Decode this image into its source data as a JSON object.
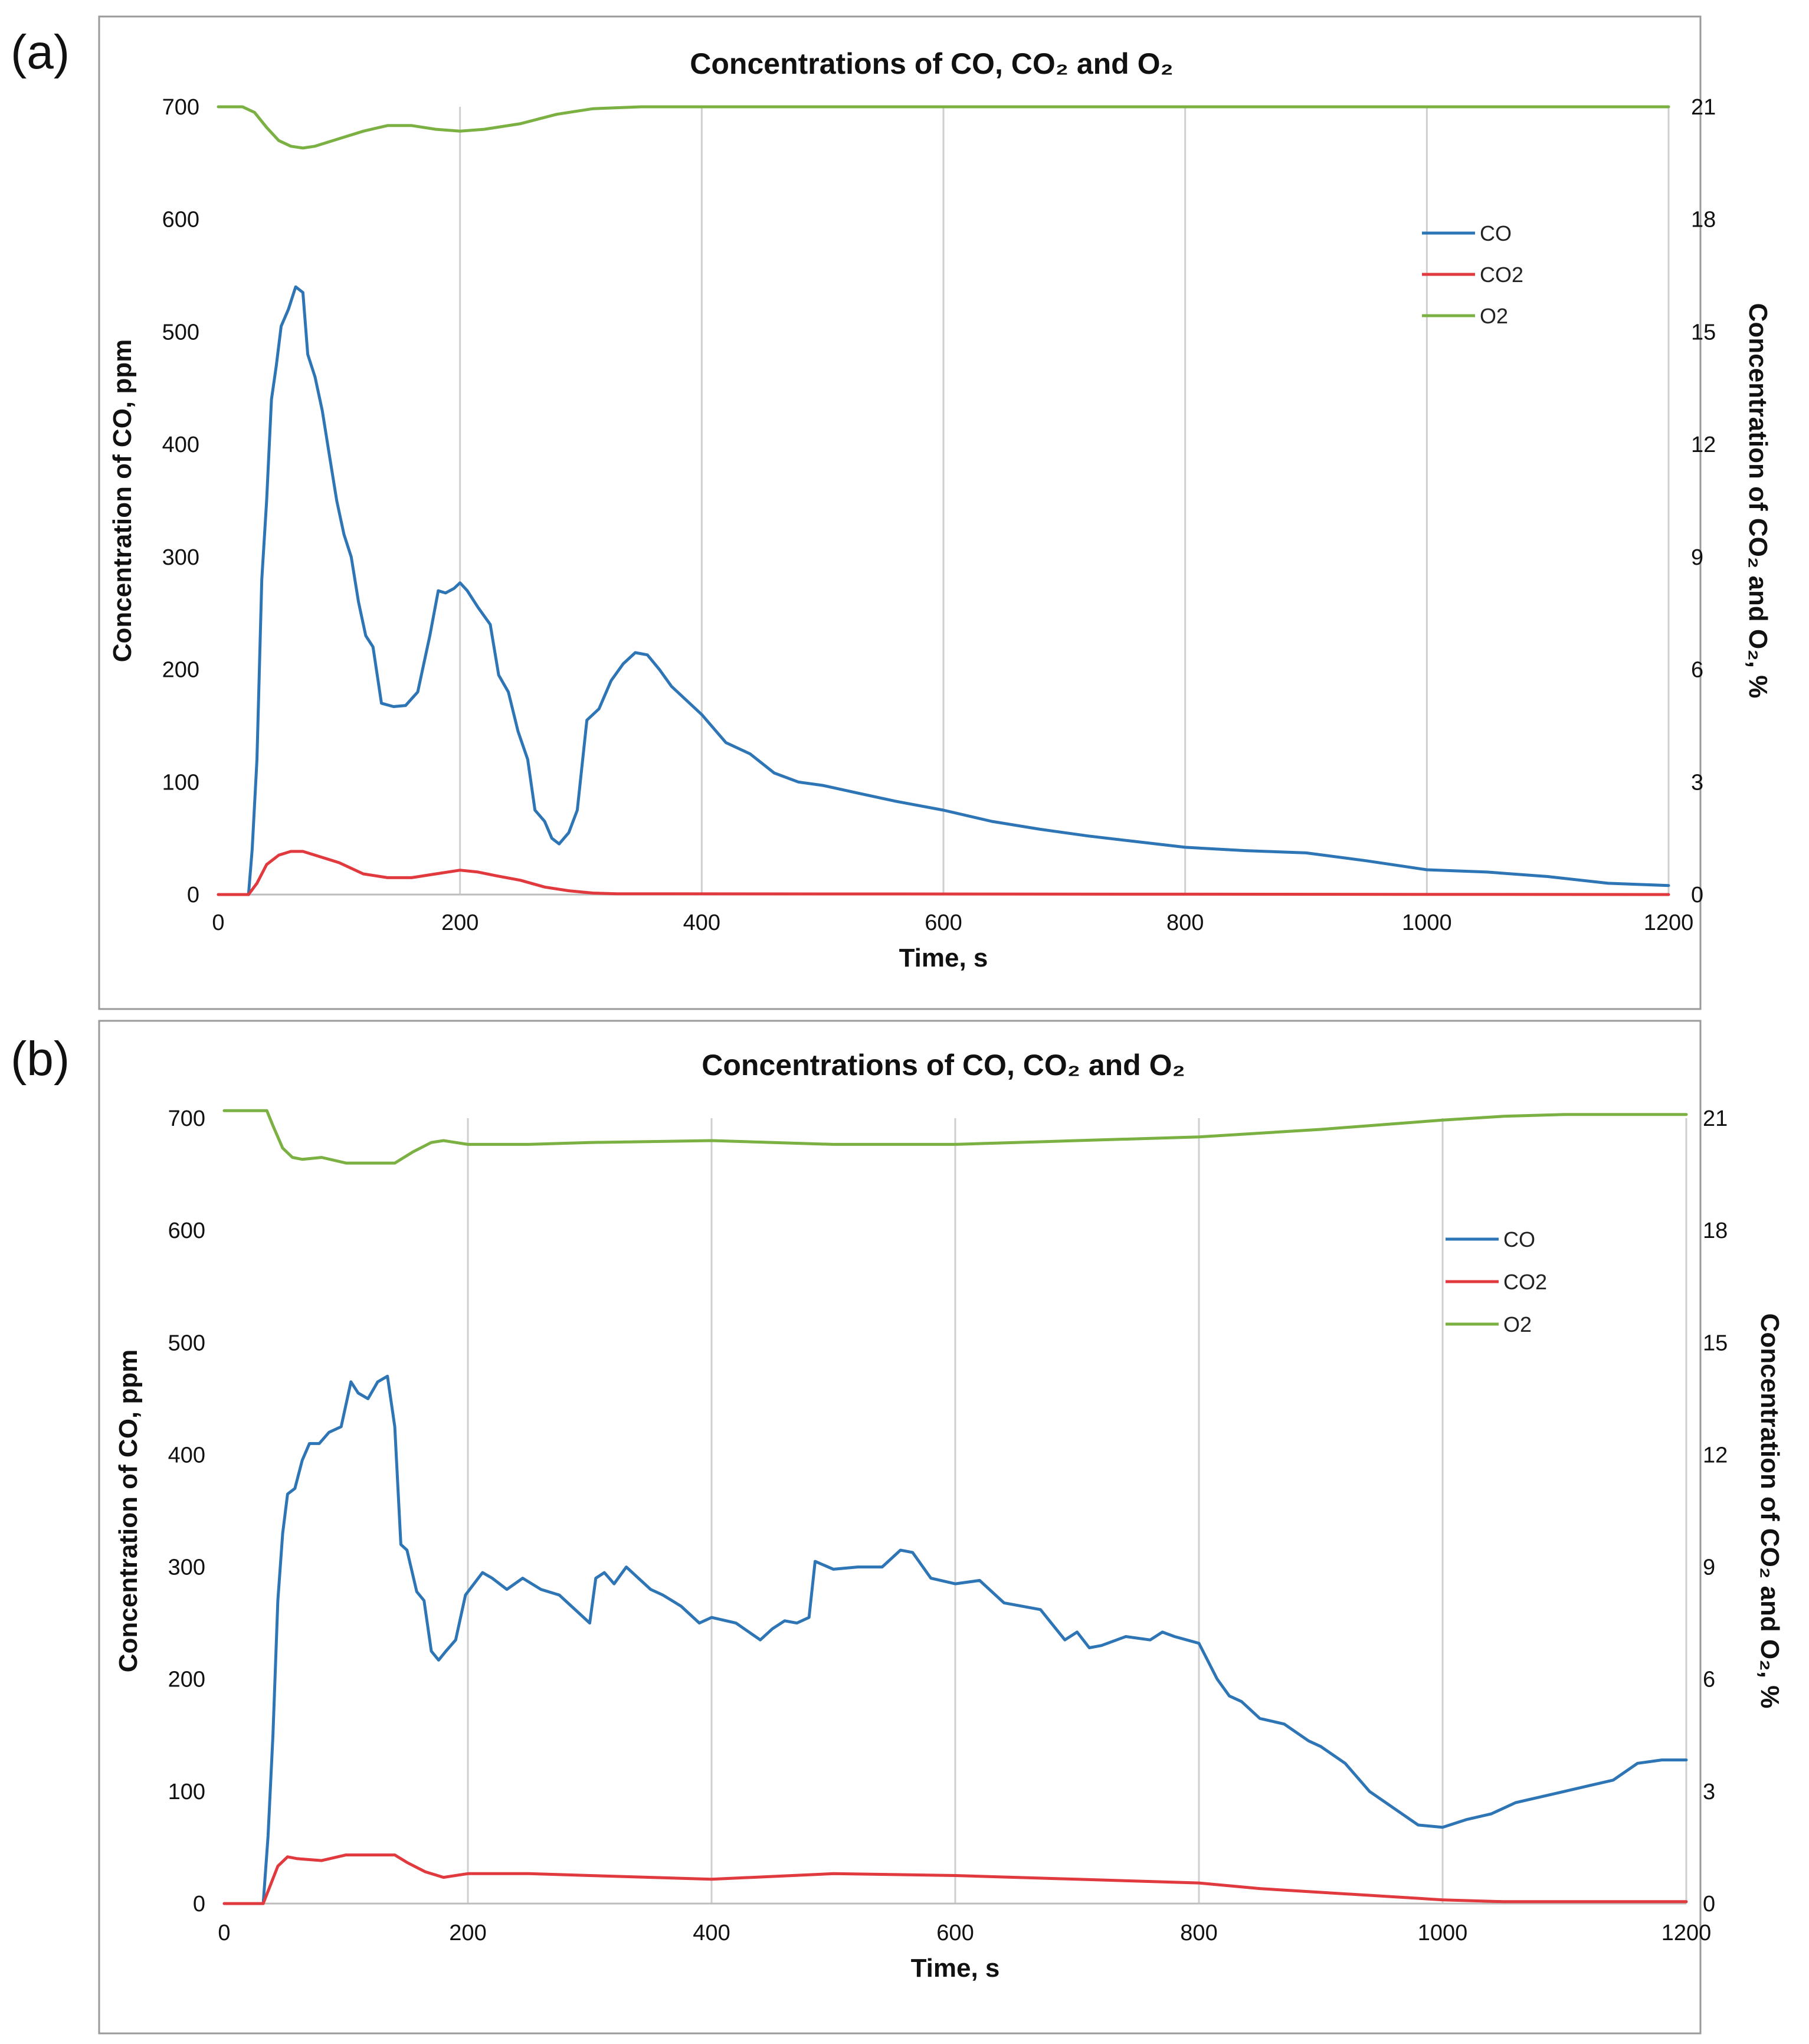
{
  "panels": [
    {
      "label": "(a)"
    },
    {
      "label": "(b)"
    }
  ],
  "legend": {
    "items": [
      {
        "name": "CO",
        "color": "#2E75B6"
      },
      {
        "name": "CO2",
        "color": "#E0393E"
      },
      {
        "name": "O2",
        "color": "#7BB043"
      }
    ]
  },
  "chart_data": [
    {
      "type": "line",
      "panel": "(a)",
      "title": "Concentrations of CO,   CO₂ and O₂",
      "xlabel": "Time, s",
      "ylabel": "Concentration of CO, ppm",
      "y2label": "Concentration of CO₂ and O₂, %",
      "xlim": [
        0,
        1200
      ],
      "ylim": [
        0,
        700
      ],
      "y2lim": [
        0,
        21
      ],
      "xticks": [
        0,
        200,
        400,
        600,
        800,
        1000,
        1200
      ],
      "yticks": [
        0,
        100,
        200,
        300,
        400,
        500,
        600,
        700
      ],
      "y2ticks": [
        0,
        3,
        6,
        9,
        12,
        15,
        18,
        21
      ],
      "grid": "vertical",
      "legend_position": "right",
      "series": [
        {
          "name": "CO",
          "axis": "left",
          "color": "#2E75B6",
          "x": [
            0,
            25,
            28,
            32,
            36,
            40,
            44,
            48,
            52,
            58,
            64,
            70,
            74,
            80,
            86,
            92,
            98,
            104,
            110,
            116,
            122,
            128,
            135,
            145,
            155,
            165,
            175,
            182,
            188,
            195,
            200,
            206,
            215,
            225,
            232,
            240,
            248,
            256,
            262,
            270,
            276,
            282,
            290,
            297,
            305,
            315,
            325,
            335,
            345,
            355,
            365,
            375,
            385,
            400,
            420,
            440,
            460,
            480,
            500,
            530,
            560,
            600,
            640,
            680,
            720,
            760,
            800,
            850,
            900,
            950,
            1000,
            1050,
            1100,
            1150,
            1200
          ],
          "y": [
            0,
            0,
            40,
            120,
            280,
            350,
            440,
            470,
            505,
            520,
            540,
            535,
            480,
            460,
            430,
            390,
            350,
            320,
            300,
            260,
            230,
            220,
            170,
            167,
            168,
            180,
            230,
            270,
            268,
            272,
            277,
            270,
            255,
            240,
            195,
            180,
            145,
            120,
            75,
            65,
            50,
            45,
            55,
            75,
            155,
            165,
            190,
            205,
            215,
            213,
            200,
            185,
            175,
            160,
            135,
            125,
            108,
            100,
            97,
            90,
            83,
            75,
            65,
            58,
            52,
            47,
            42,
            39,
            37,
            30,
            22,
            20,
            16,
            10,
            8
          ]
        },
        {
          "name": "CO2",
          "axis": "right",
          "color": "#E0393E",
          "x": [
            0,
            25,
            32,
            40,
            50,
            60,
            70,
            80,
            90,
            100,
            120,
            140,
            160,
            180,
            200,
            215,
            230,
            250,
            270,
            290,
            310,
            330,
            1200
          ],
          "y": [
            0,
            0,
            0.3,
            0.8,
            1.05,
            1.15,
            1.15,
            1.05,
            0.95,
            0.85,
            0.55,
            0.45,
            0.45,
            0.55,
            0.65,
            0.6,
            0.5,
            0.38,
            0.2,
            0.1,
            0.04,
            0.02,
            0
          ]
        },
        {
          "name": "O2",
          "axis": "right",
          "color": "#7BB043",
          "x": [
            0,
            20,
            30,
            40,
            50,
            60,
            70,
            80,
            90,
            100,
            120,
            140,
            160,
            180,
            200,
            220,
            250,
            280,
            310,
            350,
            400,
            500,
            1200
          ],
          "y": [
            21,
            21,
            20.85,
            20.45,
            20.1,
            19.95,
            19.9,
            19.95,
            20.05,
            20.15,
            20.35,
            20.5,
            20.5,
            20.4,
            20.35,
            20.4,
            20.55,
            20.8,
            20.95,
            21.0,
            21.0,
            21.0,
            21.0
          ]
        }
      ]
    },
    {
      "type": "line",
      "panel": "(b)",
      "title": "Concentrations of CO,   CO₂ and O₂",
      "xlabel": "Time, s",
      "ylabel": "Concentration of CO, ppm",
      "y2label": "Concentration of CO₂ and O₂, %",
      "xlim": [
        0,
        1200
      ],
      "ylim": [
        0,
        700
      ],
      "y2lim": [
        0,
        21
      ],
      "xticks": [
        0,
        200,
        400,
        600,
        800,
        1000,
        1200
      ],
      "yticks": [
        0,
        100,
        200,
        300,
        400,
        500,
        600,
        700
      ],
      "y2ticks": [
        0,
        3,
        6,
        9,
        12,
        15,
        18,
        21
      ],
      "grid": "vertical",
      "legend_position": "right",
      "series": [
        {
          "name": "CO",
          "axis": "left",
          "color": "#2E75B6",
          "x": [
            0,
            32,
            36,
            40,
            44,
            48,
            52,
            58,
            64,
            70,
            78,
            86,
            96,
            104,
            110,
            118,
            126,
            134,
            140,
            145,
            150,
            158,
            164,
            170,
            176,
            182,
            190,
            198,
            205,
            212,
            220,
            232,
            245,
            260,
            275,
            290,
            300,
            305,
            312,
            320,
            330,
            340,
            350,
            360,
            375,
            390,
            400,
            420,
            440,
            450,
            460,
            470,
            480,
            485,
            500,
            520,
            540,
            555,
            565,
            580,
            600,
            620,
            640,
            670,
            690,
            700,
            710,
            720,
            740,
            760,
            770,
            780,
            790,
            800,
            815,
            825,
            835,
            850,
            870,
            890,
            900,
            920,
            940,
            960,
            980,
            1000,
            1020,
            1040,
            1060,
            1080,
            1100,
            1120,
            1140,
            1160,
            1180,
            1200
          ],
          "y": [
            0,
            0,
            60,
            150,
            270,
            330,
            365,
            370,
            395,
            410,
            410,
            420,
            425,
            465,
            455,
            450,
            465,
            470,
            425,
            320,
            315,
            278,
            270,
            225,
            217,
            225,
            235,
            275,
            285,
            295,
            290,
            280,
            290,
            280,
            275,
            260,
            250,
            290,
            295,
            285,
            300,
            290,
            280,
            275,
            265,
            250,
            255,
            250,
            235,
            245,
            252,
            250,
            255,
            305,
            298,
            300,
            300,
            315,
            313,
            290,
            285,
            288,
            268,
            262,
            235,
            242,
            228,
            230,
            238,
            235,
            242,
            238,
            235,
            232,
            200,
            185,
            180,
            165,
            160,
            145,
            140,
            125,
            100,
            85,
            70,
            68,
            75,
            80,
            90,
            95,
            100,
            105,
            110,
            125,
            128,
            128
          ]
        },
        {
          "name": "CO2",
          "axis": "right",
          "color": "#E0393E",
          "x": [
            0,
            32,
            38,
            44,
            52,
            60,
            80,
            100,
            120,
            140,
            150,
            165,
            180,
            200,
            250,
            300,
            400,
            500,
            600,
            700,
            800,
            850,
            900,
            1000,
            1050,
            1200
          ],
          "y": [
            0,
            0,
            0.5,
            1.0,
            1.25,
            1.2,
            1.15,
            1.3,
            1.3,
            1.3,
            1.1,
            0.85,
            0.7,
            0.8,
            0.8,
            0.75,
            0.65,
            0.8,
            0.75,
            0.65,
            0.55,
            0.4,
            0.3,
            0.1,
            0.05,
            0.05
          ]
        },
        {
          "name": "O2",
          "axis": "right",
          "color": "#7BB043",
          "x": [
            0,
            35,
            40,
            48,
            56,
            64,
            80,
            100,
            120,
            140,
            155,
            170,
            180,
            200,
            250,
            300,
            400,
            500,
            600,
            700,
            800,
            900,
            1000,
            1050,
            1100,
            1200
          ],
          "y": [
            21.2,
            21.2,
            20.8,
            20.2,
            19.95,
            19.9,
            19.95,
            19.8,
            19.8,
            19.8,
            20.1,
            20.35,
            20.4,
            20.3,
            20.3,
            20.35,
            20.4,
            20.3,
            20.3,
            20.4,
            20.5,
            20.7,
            20.95,
            21.05,
            21.1,
            21.1
          ]
        }
      ]
    }
  ]
}
